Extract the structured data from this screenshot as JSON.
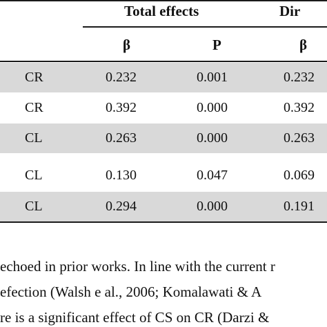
{
  "header": {
    "group_total": "Total effects",
    "group_direct": "Dir",
    "col_beta": "β",
    "col_p": "P",
    "col_direct_beta": "β"
  },
  "rows": [
    {
      "path": "CR",
      "beta": "0.232",
      "p": "0.001",
      "direct_beta": "0.232",
      "shaded": true
    },
    {
      "path": "CR",
      "beta": "0.392",
      "p": "0.000",
      "direct_beta": "0.392",
      "shaded": false
    },
    {
      "path": "CL",
      "beta": "0.263",
      "p": "0.000",
      "direct_beta": "0.263",
      "shaded": true
    },
    {
      "path": "CL",
      "beta": "0.130",
      "p": "0.047",
      "direct_beta": "0.069",
      "shaded": false
    },
    {
      "path": "CL",
      "beta": "0.294",
      "p": "0.000",
      "direct_beta": "0.191",
      "shaded": true
    }
  ],
  "body_text": {
    "line1": "echoed in prior works. In line with the current r",
    "line2": "efection (Walsh e al., 2006; Komalawati & A",
    "line3": "re is a significant effect of CS on CR (Darzi &"
  }
}
